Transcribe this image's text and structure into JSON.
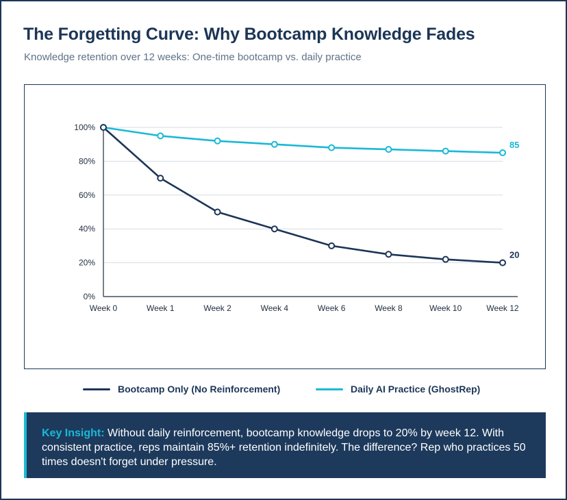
{
  "header": {
    "title": "The Forgetting Curve: Why Bootcamp Knowledge Fades",
    "subtitle": "Knowledge retention over 12 weeks: One-time bootcamp vs. daily practice"
  },
  "chart_data": {
    "type": "line",
    "categories": [
      "Week 0",
      "Week 1",
      "Week 2",
      "Week 4",
      "Week 6",
      "Week 8",
      "Week 10",
      "Week 12"
    ],
    "y_ticks": [
      "0%",
      "20%",
      "40%",
      "60%",
      "80%",
      "100%"
    ],
    "ylim": [
      0,
      100
    ],
    "grid": true,
    "legend_position": "bottom",
    "series": [
      {
        "name": "Bootcamp Only (No Reinforcement)",
        "color": "#1c3557",
        "values": [
          100,
          70,
          50,
          40,
          30,
          25,
          22,
          20
        ],
        "end_label": "20"
      },
      {
        "name": "Daily AI Practice (GhostRep)",
        "color": "#19b9d6",
        "values": [
          100,
          95,
          92,
          90,
          88,
          87,
          86,
          85
        ],
        "end_label": "85"
      }
    ]
  },
  "insight": {
    "title": "Key Insight:",
    "text": "Without daily reinforcement, bootcamp knowledge drops to 20% by week 12. With consistent practice, reps maintain 85%+ retention indefinitely. The difference? Rep who practices 50 times doesn't forget under pressure."
  }
}
